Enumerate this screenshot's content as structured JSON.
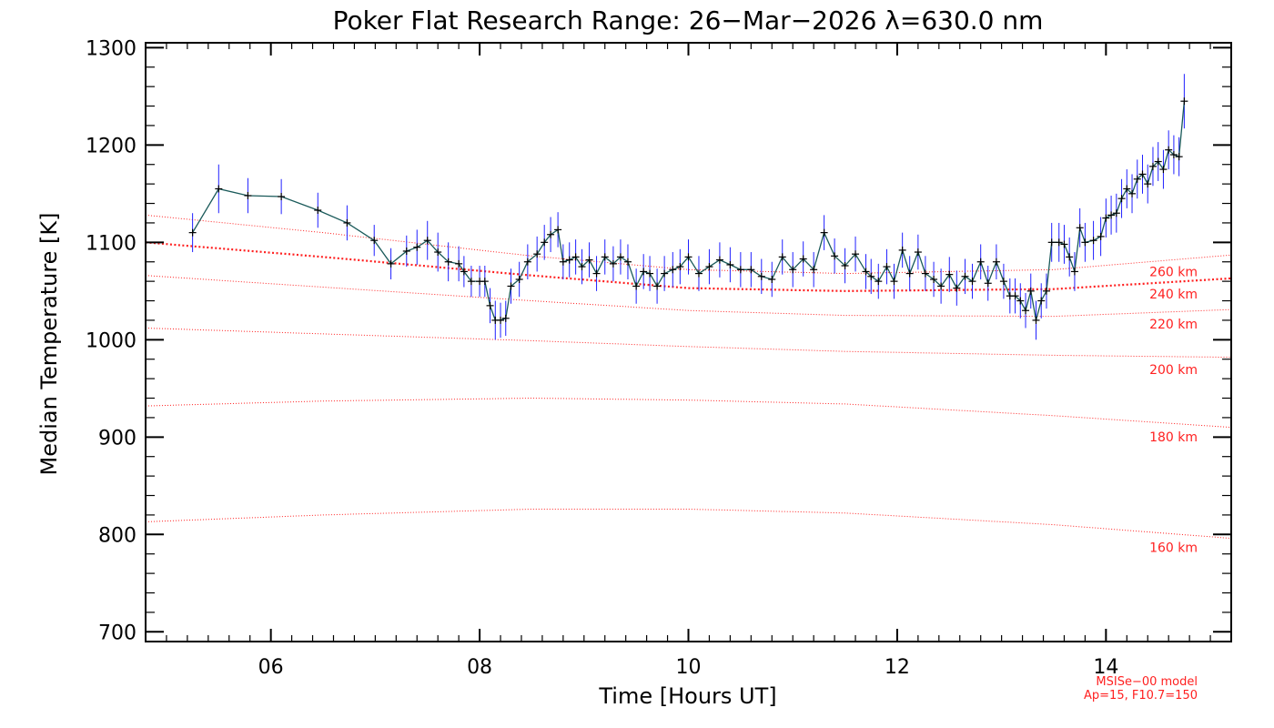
{
  "chart_data": {
    "type": "line",
    "title": "Poker Flat Research Range: 26−Mar−2026 λ=630.0 nm",
    "xlabel": "Time [Hours UT]",
    "ylabel": "Median Temperature [K]",
    "xlim": [
      4.8,
      15.2
    ],
    "ylim": [
      690,
      1305
    ],
    "x_ticks": [
      {
        "value": 6,
        "label": "06"
      },
      {
        "value": 8,
        "label": "08"
      },
      {
        "value": 10,
        "label": "10"
      },
      {
        "value": 12,
        "label": "12"
      },
      {
        "value": 14,
        "label": "14"
      }
    ],
    "y_ticks": [
      {
        "value": 700,
        "label": "700"
      },
      {
        "value": 800,
        "label": "800"
      },
      {
        "value": 900,
        "label": "900"
      },
      {
        "value": 1000,
        "label": "1000"
      },
      {
        "value": 1100,
        "label": "1100"
      },
      {
        "value": 1200,
        "label": "1200"
      },
      {
        "value": 1300,
        "label": "1300"
      }
    ],
    "grid": false,
    "colors": {
      "measurement_line": "#1a5a5a",
      "error_bars": "#2020ff",
      "markers": "#000000",
      "model_curves": "#ff2020"
    },
    "series": [
      {
        "x": [
          5.25,
          5.5,
          5.78,
          6.1,
          6.45,
          6.73,
          6.99,
          7.15,
          7.3,
          7.4,
          7.5,
          7.6,
          7.7,
          7.8,
          7.85,
          7.92,
          8.0,
          8.05,
          8.1,
          8.15,
          8.2,
          8.25,
          8.3,
          8.38,
          8.46,
          8.55,
          8.62,
          8.68,
          8.75,
          8.8,
          8.86,
          8.92,
          8.98,
          9.05,
          9.12,
          9.2,
          9.28,
          9.35,
          9.42,
          9.5,
          9.57,
          9.63,
          9.7,
          9.77,
          9.85,
          9.92,
          10.0,
          10.1,
          10.2,
          10.3,
          10.4,
          10.5,
          10.6,
          10.7,
          10.8,
          10.9,
          11.0,
          11.1,
          11.2,
          11.3,
          11.4,
          11.5,
          11.6,
          11.7,
          11.75,
          11.82,
          11.9,
          11.97,
          12.05,
          12.12,
          12.2,
          12.27,
          12.35,
          12.42,
          12.5,
          12.57,
          12.65,
          12.72,
          12.8,
          12.87,
          12.95,
          13.02,
          13.08,
          13.13,
          13.18,
          13.23,
          13.28,
          13.33,
          13.38,
          13.43,
          13.48,
          13.55,
          13.6,
          13.65,
          13.7,
          13.75,
          13.8,
          13.88,
          13.95,
          14.0,
          14.05,
          14.1,
          14.15,
          14.2,
          14.25,
          14.3,
          14.35,
          14.4,
          14.45,
          14.5,
          14.55,
          14.6,
          14.65,
          14.7,
          14.75
        ],
        "values": [
          1110,
          1155,
          1148,
          1147,
          1133,
          1120,
          1102,
          1078,
          1091,
          1095,
          1102,
          1090,
          1080,
          1078,
          1070,
          1060,
          1060,
          1060,
          1035,
          1020,
          1020,
          1022,
          1055,
          1062,
          1080,
          1088,
          1100,
          1108,
          1113,
          1080,
          1082,
          1085,
          1075,
          1082,
          1068,
          1085,
          1078,
          1085,
          1080,
          1055,
          1070,
          1068,
          1055,
          1068,
          1072,
          1075,
          1085,
          1068,
          1075,
          1082,
          1077,
          1072,
          1072,
          1065,
          1062,
          1085,
          1072,
          1083,
          1072,
          1110,
          1086,
          1076,
          1088,
          1070,
          1065,
          1060,
          1075,
          1060,
          1092,
          1068,
          1090,
          1068,
          1062,
          1055,
          1067,
          1053,
          1065,
          1060,
          1080,
          1058,
          1080,
          1060,
          1045,
          1045,
          1040,
          1030,
          1050,
          1020,
          1040,
          1050,
          1100,
          1100,
          1098,
          1085,
          1070,
          1115,
          1100,
          1102,
          1106,
          1125,
          1128,
          1130,
          1145,
          1155,
          1150,
          1165,
          1170,
          1160,
          1178,
          1183,
          1175,
          1195,
          1190,
          1188,
          1245
        ],
        "errors": [
          20,
          25,
          18,
          18,
          18,
          18,
          16,
          16,
          16,
          18,
          20,
          20,
          20,
          18,
          16,
          16,
          16,
          16,
          18,
          20,
          18,
          18,
          18,
          18,
          18,
          18,
          18,
          18,
          18,
          18,
          18,
          18,
          18,
          18,
          18,
          18,
          18,
          18,
          18,
          18,
          18,
          18,
          18,
          18,
          18,
          18,
          18,
          18,
          18,
          18,
          18,
          18,
          18,
          18,
          18,
          18,
          18,
          18,
          18,
          18,
          18,
          18,
          18,
          18,
          18,
          18,
          18,
          18,
          18,
          18,
          18,
          18,
          18,
          18,
          18,
          18,
          18,
          18,
          18,
          18,
          18,
          18,
          18,
          18,
          18,
          18,
          18,
          20,
          18,
          18,
          20,
          20,
          20,
          20,
          20,
          20,
          20,
          20,
          20,
          20,
          20,
          20,
          20,
          20,
          20,
          20,
          20,
          20,
          20,
          20,
          20,
          20,
          20,
          20,
          28
        ]
      }
    ],
    "model_curves": [
      {
        "label": "160 km",
        "x": [
          4.8,
          6.5,
          8.5,
          10.0,
          11.5,
          13.5,
          15.2
        ],
        "values": [
          813,
          820,
          826,
          826,
          822,
          810,
          796
        ]
      },
      {
        "label": "180 km",
        "x": [
          4.8,
          6.5,
          8.5,
          10.0,
          11.5,
          13.5,
          15.2
        ],
        "values": [
          932,
          937,
          940,
          938,
          934,
          922,
          910
        ]
      },
      {
        "label": "200 km",
        "x": [
          4.8,
          6.5,
          8.5,
          10.0,
          11.5,
          13.5,
          15.2
        ],
        "values": [
          1012,
          1006,
          999,
          993,
          988,
          984,
          982
        ]
      },
      {
        "label": "220 km",
        "x": [
          4.8,
          6.5,
          8.5,
          10.0,
          11.5,
          13.5,
          15.2
        ],
        "values": [
          1066,
          1054,
          1040,
          1030,
          1025,
          1024,
          1031
        ]
      },
      {
        "label": "240 km",
        "x": [
          4.8,
          6.5,
          8.5,
          10.0,
          11.5,
          13.5,
          15.2
        ],
        "values": [
          1100,
          1085,
          1066,
          1053,
          1050,
          1052,
          1063
        ]
      },
      {
        "label": "260 km",
        "x": [
          4.8,
          6.5,
          8.5,
          10.0,
          11.5,
          13.5,
          15.2
        ],
        "values": [
          1128,
          1110,
          1086,
          1072,
          1068,
          1072,
          1087
        ]
      }
    ],
    "annotations": [
      "MSISe−00 model",
      "Ap=15, F10.7=150"
    ]
  }
}
